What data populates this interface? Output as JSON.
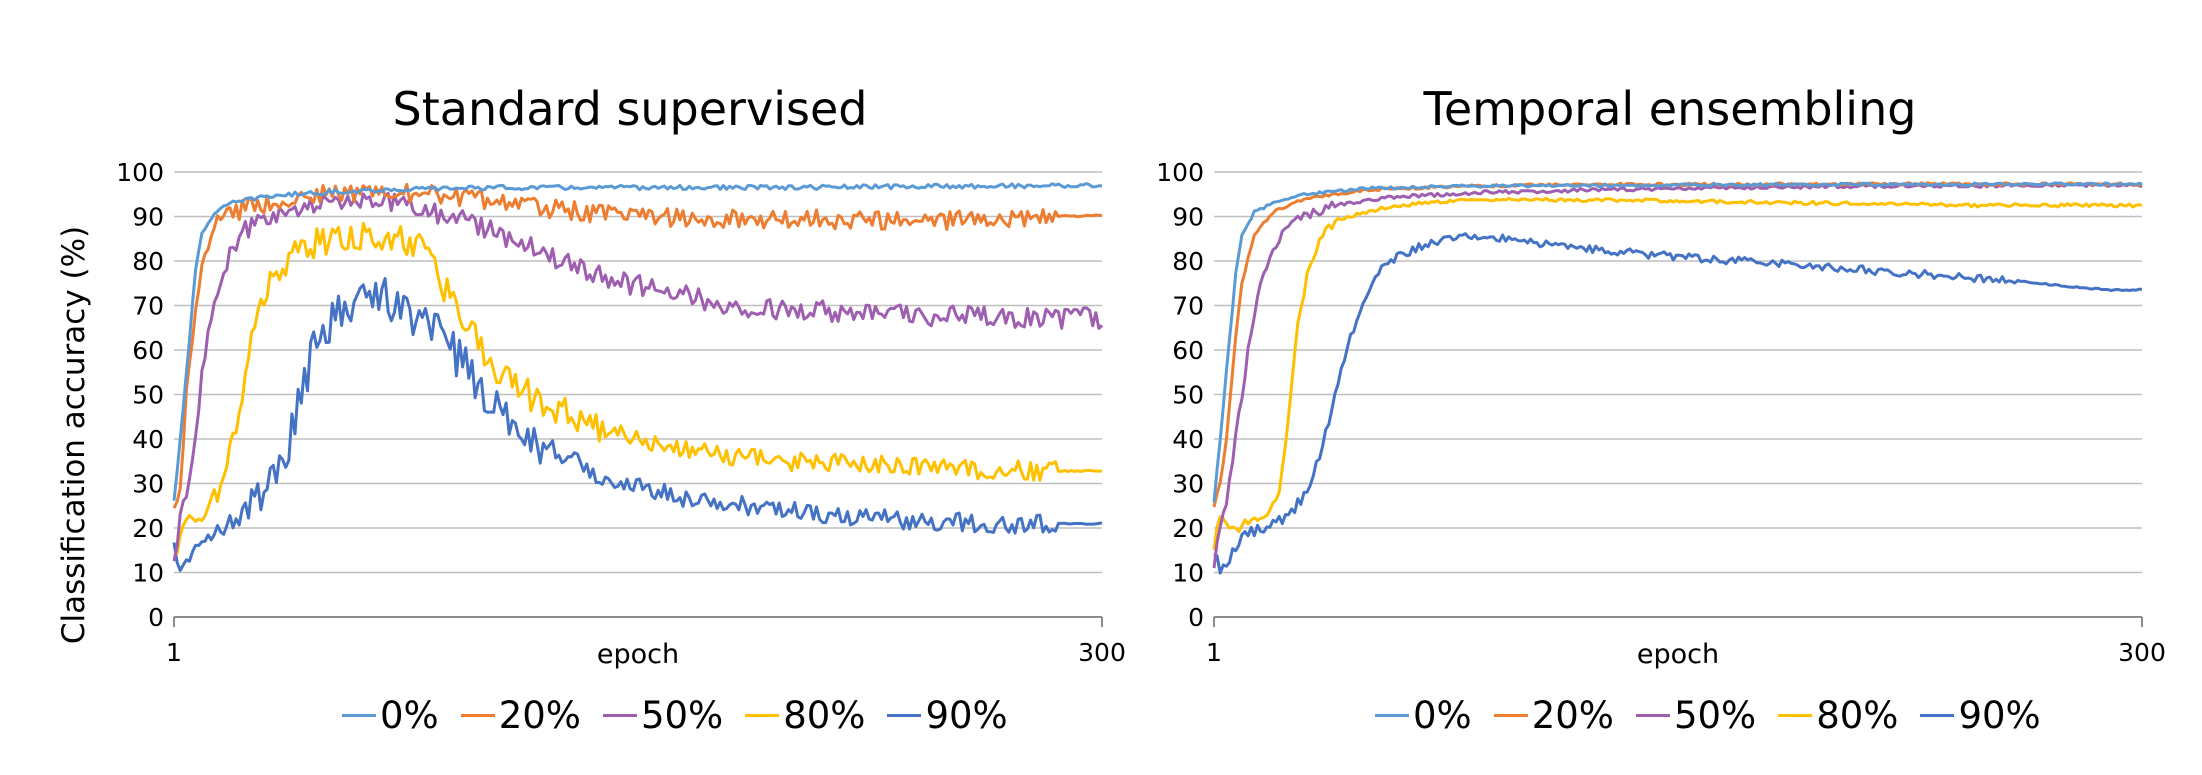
{
  "charts": [
    {
      "title": "Standard supervised",
      "ylabel": "Classification accuracy (%)",
      "xlabel": "epoch",
      "x_min_label": "1",
      "x_max_label": "300"
    },
    {
      "title": "Temporal ensembling",
      "ylabel": "",
      "xlabel": "epoch",
      "x_min_label": "1",
      "x_max_label": "300"
    }
  ],
  "chart_data": [
    {
      "type": "line",
      "title": "Standard supervised",
      "xlabel": "epoch",
      "ylabel": "Classification accuracy (%)",
      "xlim": [
        1,
        300
      ],
      "ylim": [
        0,
        100
      ],
      "yticks": [
        0,
        10,
        20,
        30,
        40,
        50,
        60,
        70,
        80,
        90,
        100
      ],
      "xticks": [
        1,
        300
      ],
      "grid": "horizontal",
      "legend": "bottom",
      "series": [
        {
          "name": "0%",
          "color": "#5B9BD5",
          "x": [
            1,
            3,
            5,
            8,
            10,
            14,
            20,
            30,
            50,
            70,
            100,
            150,
            200,
            250,
            300
          ],
          "values": [
            26,
            40,
            55,
            78,
            86,
            91,
            93,
            94.5,
            95.5,
            96,
            96.5,
            96.5,
            96.5,
            96.8,
            97
          ]
        },
        {
          "name": "20%",
          "color": "#ED7D31",
          "x": [
            1,
            3,
            5,
            8,
            10,
            14,
            20,
            30,
            40,
            50,
            60,
            70,
            80,
            100,
            120,
            150,
            200,
            250,
            280,
            300
          ],
          "values": [
            24,
            30,
            50,
            70,
            80,
            88,
            91,
            93,
            94,
            95,
            95.5,
            95.5,
            95,
            94,
            92,
            90,
            89.5,
            89,
            90,
            90.2
          ]
        },
        {
          "name": "50%",
          "color": "#9E5FB0",
          "x": [
            1,
            3,
            5,
            8,
            10,
            14,
            18,
            22,
            30,
            40,
            50,
            60,
            70,
            80,
            90,
            100,
            110,
            120,
            140,
            160,
            180,
            200,
            230,
            260,
            280,
            300
          ],
          "values": [
            12,
            22,
            28,
            40,
            55,
            70,
            80,
            86,
            90,
            92,
            93,
            93.5,
            93,
            92,
            90,
            88,
            85,
            82,
            76,
            73,
            70,
            69,
            68,
            67.5,
            67.2,
            67.2
          ]
        },
        {
          "name": "80%",
          "color": "#FFC000",
          "x": [
            1,
            3,
            5,
            8,
            12,
            15,
            18,
            22,
            25,
            30,
            35,
            40,
            50,
            60,
            70,
            80,
            85,
            90,
            95,
            100,
            105,
            110,
            120,
            130,
            140,
            150,
            170,
            200,
            230,
            260,
            280,
            300
          ],
          "values": [
            13,
            18,
            22,
            22,
            24,
            28,
            35,
            45,
            60,
            72,
            77,
            82,
            85,
            86,
            85.5,
            83,
            78,
            72,
            66,
            61,
            56,
            52,
            48,
            45,
            42,
            40,
            37,
            35,
            34,
            33,
            32.8,
            32.8
          ]
        },
        {
          "name": "90%",
          "color": "#4472C4",
          "x": [
            1,
            3,
            5,
            8,
            12,
            18,
            25,
            30,
            35,
            40,
            45,
            50,
            55,
            60,
            65,
            70,
            75,
            80,
            85,
            90,
            95,
            100,
            105,
            110,
            120,
            130,
            140,
            150,
            170,
            200,
            230,
            260,
            280,
            300
          ],
          "values": [
            16,
            11,
            12,
            15,
            19,
            21,
            24,
            27,
            32,
            45,
            58,
            64,
            68,
            70,
            72,
            71,
            70,
            67,
            64,
            60,
            56,
            52,
            48,
            44,
            39,
            35,
            31,
            29,
            26,
            24,
            22,
            21,
            21,
            21
          ]
        }
      ]
    },
    {
      "type": "line",
      "title": "Temporal ensembling",
      "xlabel": "epoch",
      "ylabel": "",
      "xlim": [
        1,
        300
      ],
      "ylim": [
        0,
        100
      ],
      "yticks": [
        0,
        10,
        20,
        30,
        40,
        50,
        60,
        70,
        80,
        90,
        100
      ],
      "xticks": [
        1,
        300
      ],
      "grid": "horizontal",
      "legend": "bottom",
      "series": [
        {
          "name": "0%",
          "color": "#5B9BD5",
          "x": [
            1,
            3,
            5,
            8,
            10,
            14,
            20,
            30,
            50,
            80,
            120,
            200,
            300
          ],
          "values": [
            26,
            40,
            55,
            77,
            86,
            91,
            93,
            95,
            96.3,
            96.8,
            97,
            97.2,
            97.3
          ]
        },
        {
          "name": "20%",
          "color": "#ED7D31",
          "x": [
            1,
            3,
            5,
            8,
            10,
            14,
            20,
            30,
            50,
            80,
            120,
            200,
            300
          ],
          "values": [
            25,
            30,
            40,
            63,
            75,
            86,
            91,
            94,
            96,
            96.8,
            97.2,
            97.3,
            97.3
          ]
        },
        {
          "name": "50%",
          "color": "#9E5FB0",
          "x": [
            1,
            3,
            5,
            8,
            12,
            16,
            20,
            25,
            30,
            40,
            60,
            90,
            150,
            200,
            300
          ],
          "values": [
            12,
            20,
            25,
            40,
            60,
            75,
            83,
            88,
            90,
            92.5,
            94.5,
            95.5,
            96.3,
            96.8,
            97
          ]
        },
        {
          "name": "80%",
          "color": "#FFC000",
          "x": [
            1,
            3,
            5,
            8,
            12,
            18,
            22,
            25,
            28,
            32,
            36,
            40,
            50,
            60,
            80,
            100,
            150,
            200,
            250,
            300
          ],
          "values": [
            16,
            23,
            20,
            20,
            21,
            23,
            28,
            45,
            65,
            80,
            86,
            89,
            91,
            92.5,
            93.5,
            93.8,
            93.5,
            93,
            92.5,
            92.5
          ]
        },
        {
          "name": "90%",
          "color": "#4472C4",
          "x": [
            1,
            3,
            5,
            8,
            12,
            18,
            25,
            30,
            35,
            40,
            45,
            50,
            55,
            60,
            70,
            80,
            90,
            100,
            120,
            140,
            160,
            180,
            200,
            220,
            240,
            260,
            280,
            290,
            300
          ],
          "values": [
            15,
            11,
            12,
            16,
            19,
            20,
            23,
            27,
            36,
            50,
            63,
            72,
            78,
            81,
            84,
            85.5,
            85.5,
            84.5,
            83,
            81.5,
            80.5,
            79.5,
            78.5,
            77.5,
            76.5,
            75.5,
            74,
            73.5,
            73.5
          ]
        }
      ]
    }
  ]
}
